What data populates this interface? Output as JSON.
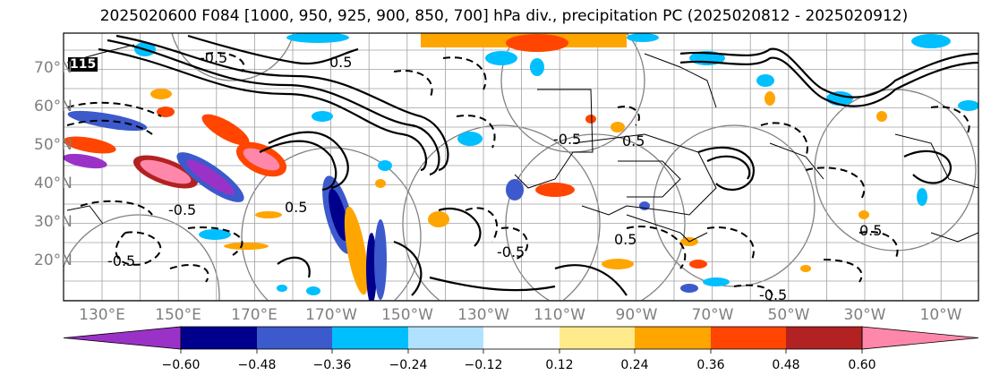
{
  "title": "2025020600 F084 [1000, 950, 925, 900, 850, 700] hPa div., precipitation PC (2025020812 - 2025020912)",
  "latitude_labels": [
    "70°N",
    "60°N",
    "50°N",
    "40°N",
    "30°N",
    "20°N"
  ],
  "longitude_labels": [
    "130°E",
    "150°E",
    "170°E",
    "170°W",
    "150°W",
    "130°W",
    "110°W",
    "90°W",
    "70°W",
    "50°W",
    "30°W",
    "10°W"
  ],
  "colorbar": {
    "tick_labels": [
      "−0.60",
      "−0.48",
      "−0.36",
      "−0.24",
      "−0.12",
      "0.12",
      "0.24",
      "0.36",
      "0.48",
      "0.60"
    ],
    "colors": [
      "#9b32c8",
      "#00008c",
      "#3c5acc",
      "#00bfff",
      "#b0e2ff",
      "#ffffff",
      "#ffeb8c",
      "#ffa500",
      "#ff4500",
      "#b22222",
      "#ff88aa"
    ]
  },
  "contour_labels": [
    "-0.5",
    "-0.5",
    "-0.5",
    "0.5",
    "0.5",
    "-0.5",
    "-0.5",
    "0.5",
    "-0.5",
    "0.5",
    "0.5"
  ],
  "corner_mark": "115"
}
